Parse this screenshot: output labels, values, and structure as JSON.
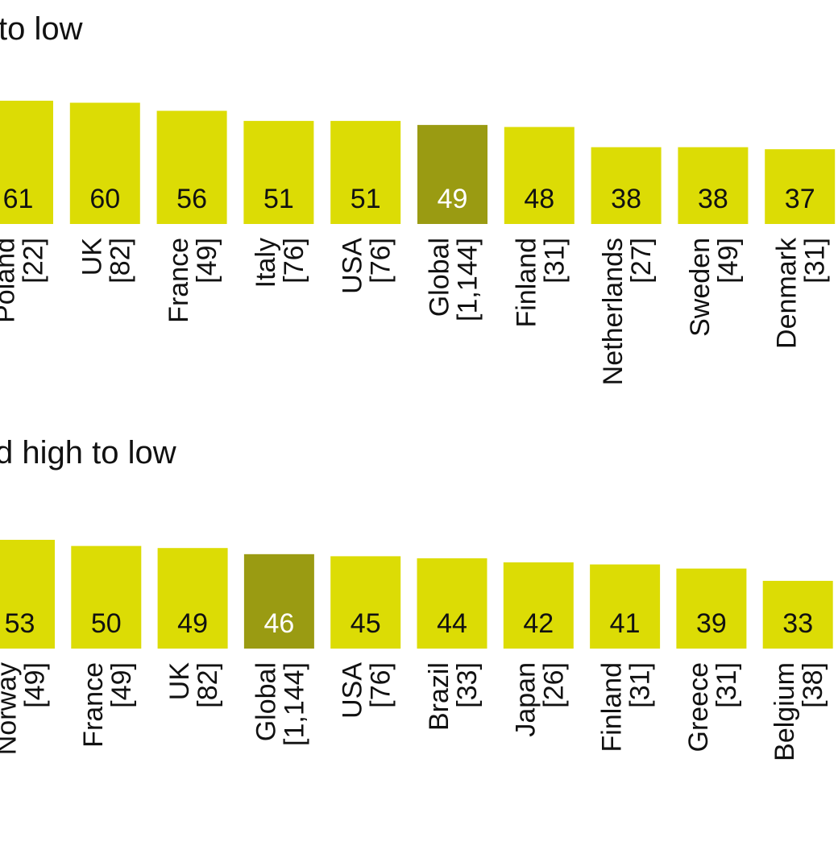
{
  "chart_data": [
    {
      "type": "bar",
      "title": "to low",
      "categories": [
        "Poland",
        "UK",
        "France",
        "Italy",
        "USA",
        "Global",
        "Finland",
        "Netherlands",
        "Sweden",
        "Denmark"
      ],
      "counts": [
        "[22]",
        "[82]",
        "[49]",
        "[76]",
        "[76]",
        "[1,144]",
        "[31]",
        "[27]",
        "[49]",
        "[31]"
      ],
      "values": [
        61,
        60,
        56,
        51,
        51,
        49,
        48,
        38,
        38,
        37
      ],
      "highlight": "Global",
      "colors": {
        "bar": "#dcdc05",
        "highlight": "#9a9b12",
        "label": "#111111",
        "highlight_label": "#ffffff"
      }
    },
    {
      "type": "bar",
      "title": "d high to low",
      "categories": [
        "Norway",
        "France",
        "UK",
        "Global",
        "USA",
        "Brazil",
        "Japan",
        "Finland",
        "Greece",
        "Belgium"
      ],
      "counts": [
        "[49]",
        "[49]",
        "[82]",
        "[1,144]",
        "[76]",
        "[33]",
        "[26]",
        "[31]",
        "[31]",
        "[38]"
      ],
      "values": [
        53,
        50,
        49,
        46,
        45,
        44,
        42,
        41,
        39,
        33
      ],
      "highlight": "Global",
      "colors": {
        "bar": "#dcdc05",
        "highlight": "#9a9b12",
        "label": "#111111",
        "highlight_label": "#ffffff"
      }
    }
  ]
}
